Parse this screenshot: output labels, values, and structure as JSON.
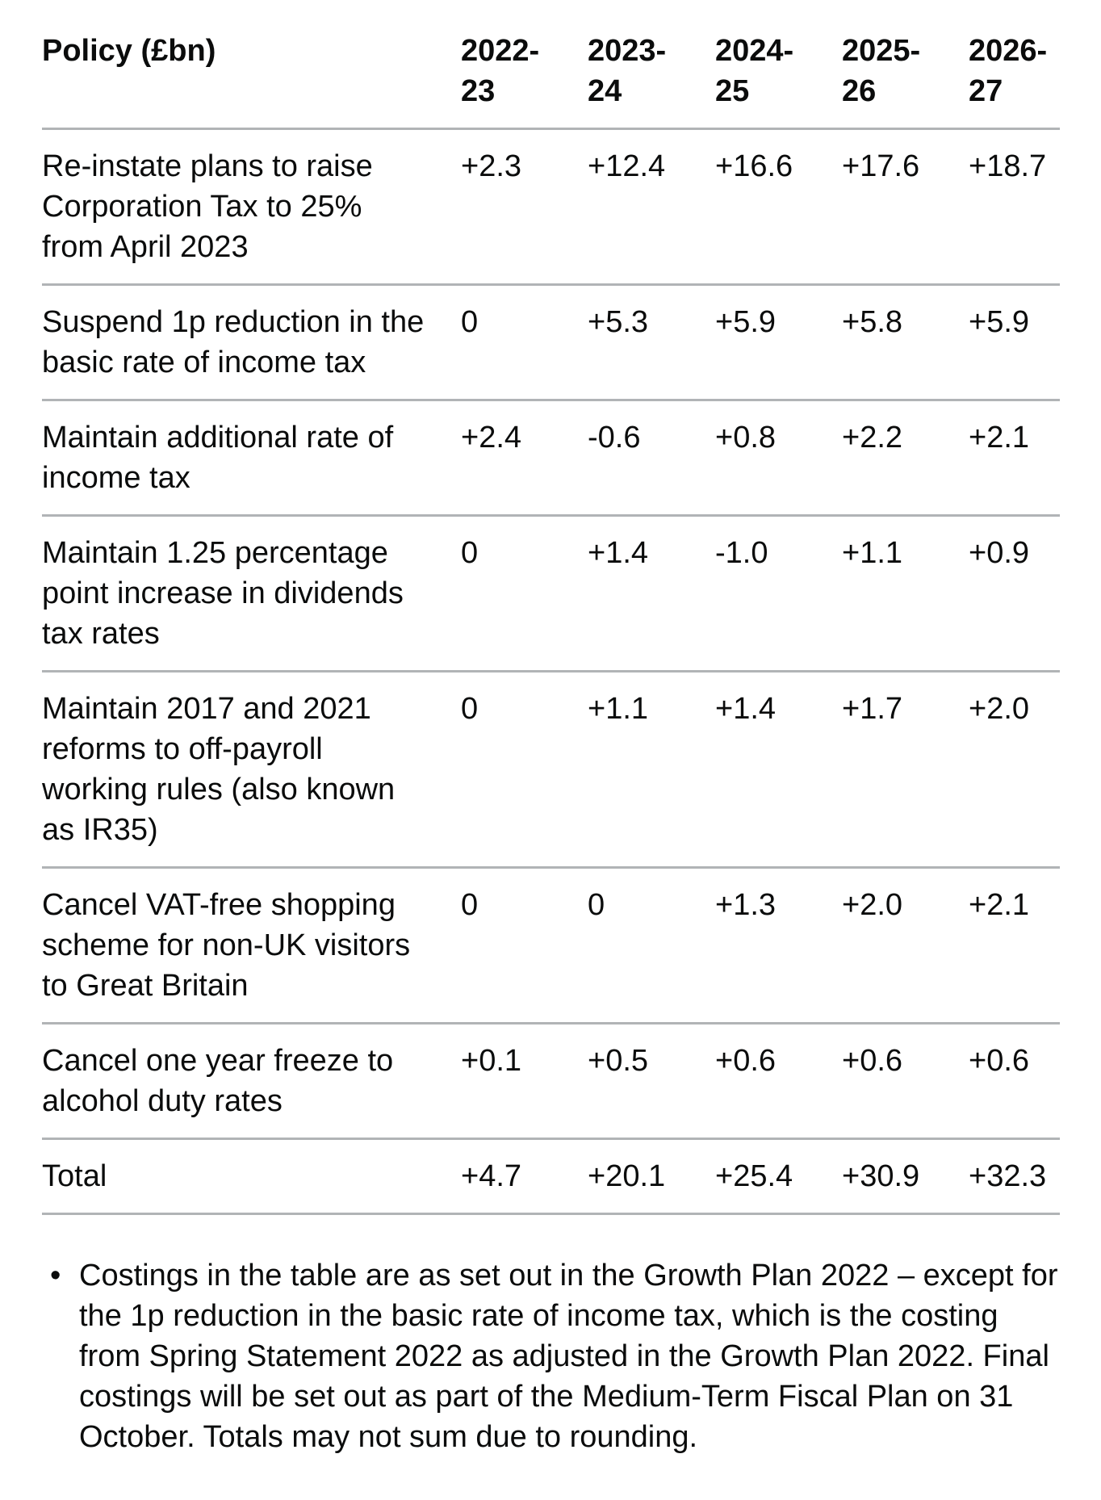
{
  "page": {
    "background_color": "#ffffff",
    "text_color": "#0b0c0c",
    "rule_color": "#b1b4b6"
  },
  "table": {
    "header": {
      "policy_label": "Policy (£bn)",
      "years": [
        "2022-23",
        "2023-24",
        "2024-25",
        "2025-26",
        "2026-27"
      ]
    },
    "rows": [
      {
        "policy": "Re-instate plans to raise Corporation Tax to 25% from April 2023",
        "values": [
          "+2.3",
          "+12.4",
          "+16.6",
          "+17.6",
          "+18.7"
        ]
      },
      {
        "policy": "Suspend 1p reduction in the basic rate of income tax",
        "values": [
          "0",
          "+5.3",
          "+5.9",
          "+5.8",
          "+5.9"
        ]
      },
      {
        "policy": "Maintain additional rate of income tax",
        "values": [
          "+2.4",
          "-0.6",
          "+0.8",
          "+2.2",
          "+2.1"
        ]
      },
      {
        "policy": "Maintain 1.25 percentage point increase in dividends tax rates",
        "values": [
          "0",
          "+1.4",
          "-1.0",
          "+1.1",
          "+0.9"
        ]
      },
      {
        "policy": "Maintain 2017 and 2021 reforms to off-payroll working rules (also known as IR35)",
        "values": [
          "0",
          "+1.1",
          "+1.4",
          "+1.7",
          "+2.0"
        ]
      },
      {
        "policy": "Cancel VAT-free shopping scheme for non-UK visitors to Great Britain",
        "values": [
          "0",
          "0",
          "+1.3",
          "+2.0",
          "+2.1"
        ]
      },
      {
        "policy": "Cancel one year freeze to alcohol duty rates",
        "values": [
          "+0.1",
          "+0.5",
          "+0.6",
          "+0.6",
          "+0.6"
        ]
      }
    ],
    "total": {
      "label": "Total",
      "values": [
        "+4.7",
        "+20.1",
        "+25.4",
        "+30.9",
        "+32.3"
      ]
    }
  },
  "notes": [
    "Costings in the table are as set out in the Growth Plan 2022 – except for the 1p reduction in the basic rate of income tax, which is the costing from Spring Statement 2022 as adjusted in the Growth Plan 2022. Final costings will be set out as part of the Medium-Term Fiscal Plan on 31 October. Totals may not sum due to rounding."
  ]
}
